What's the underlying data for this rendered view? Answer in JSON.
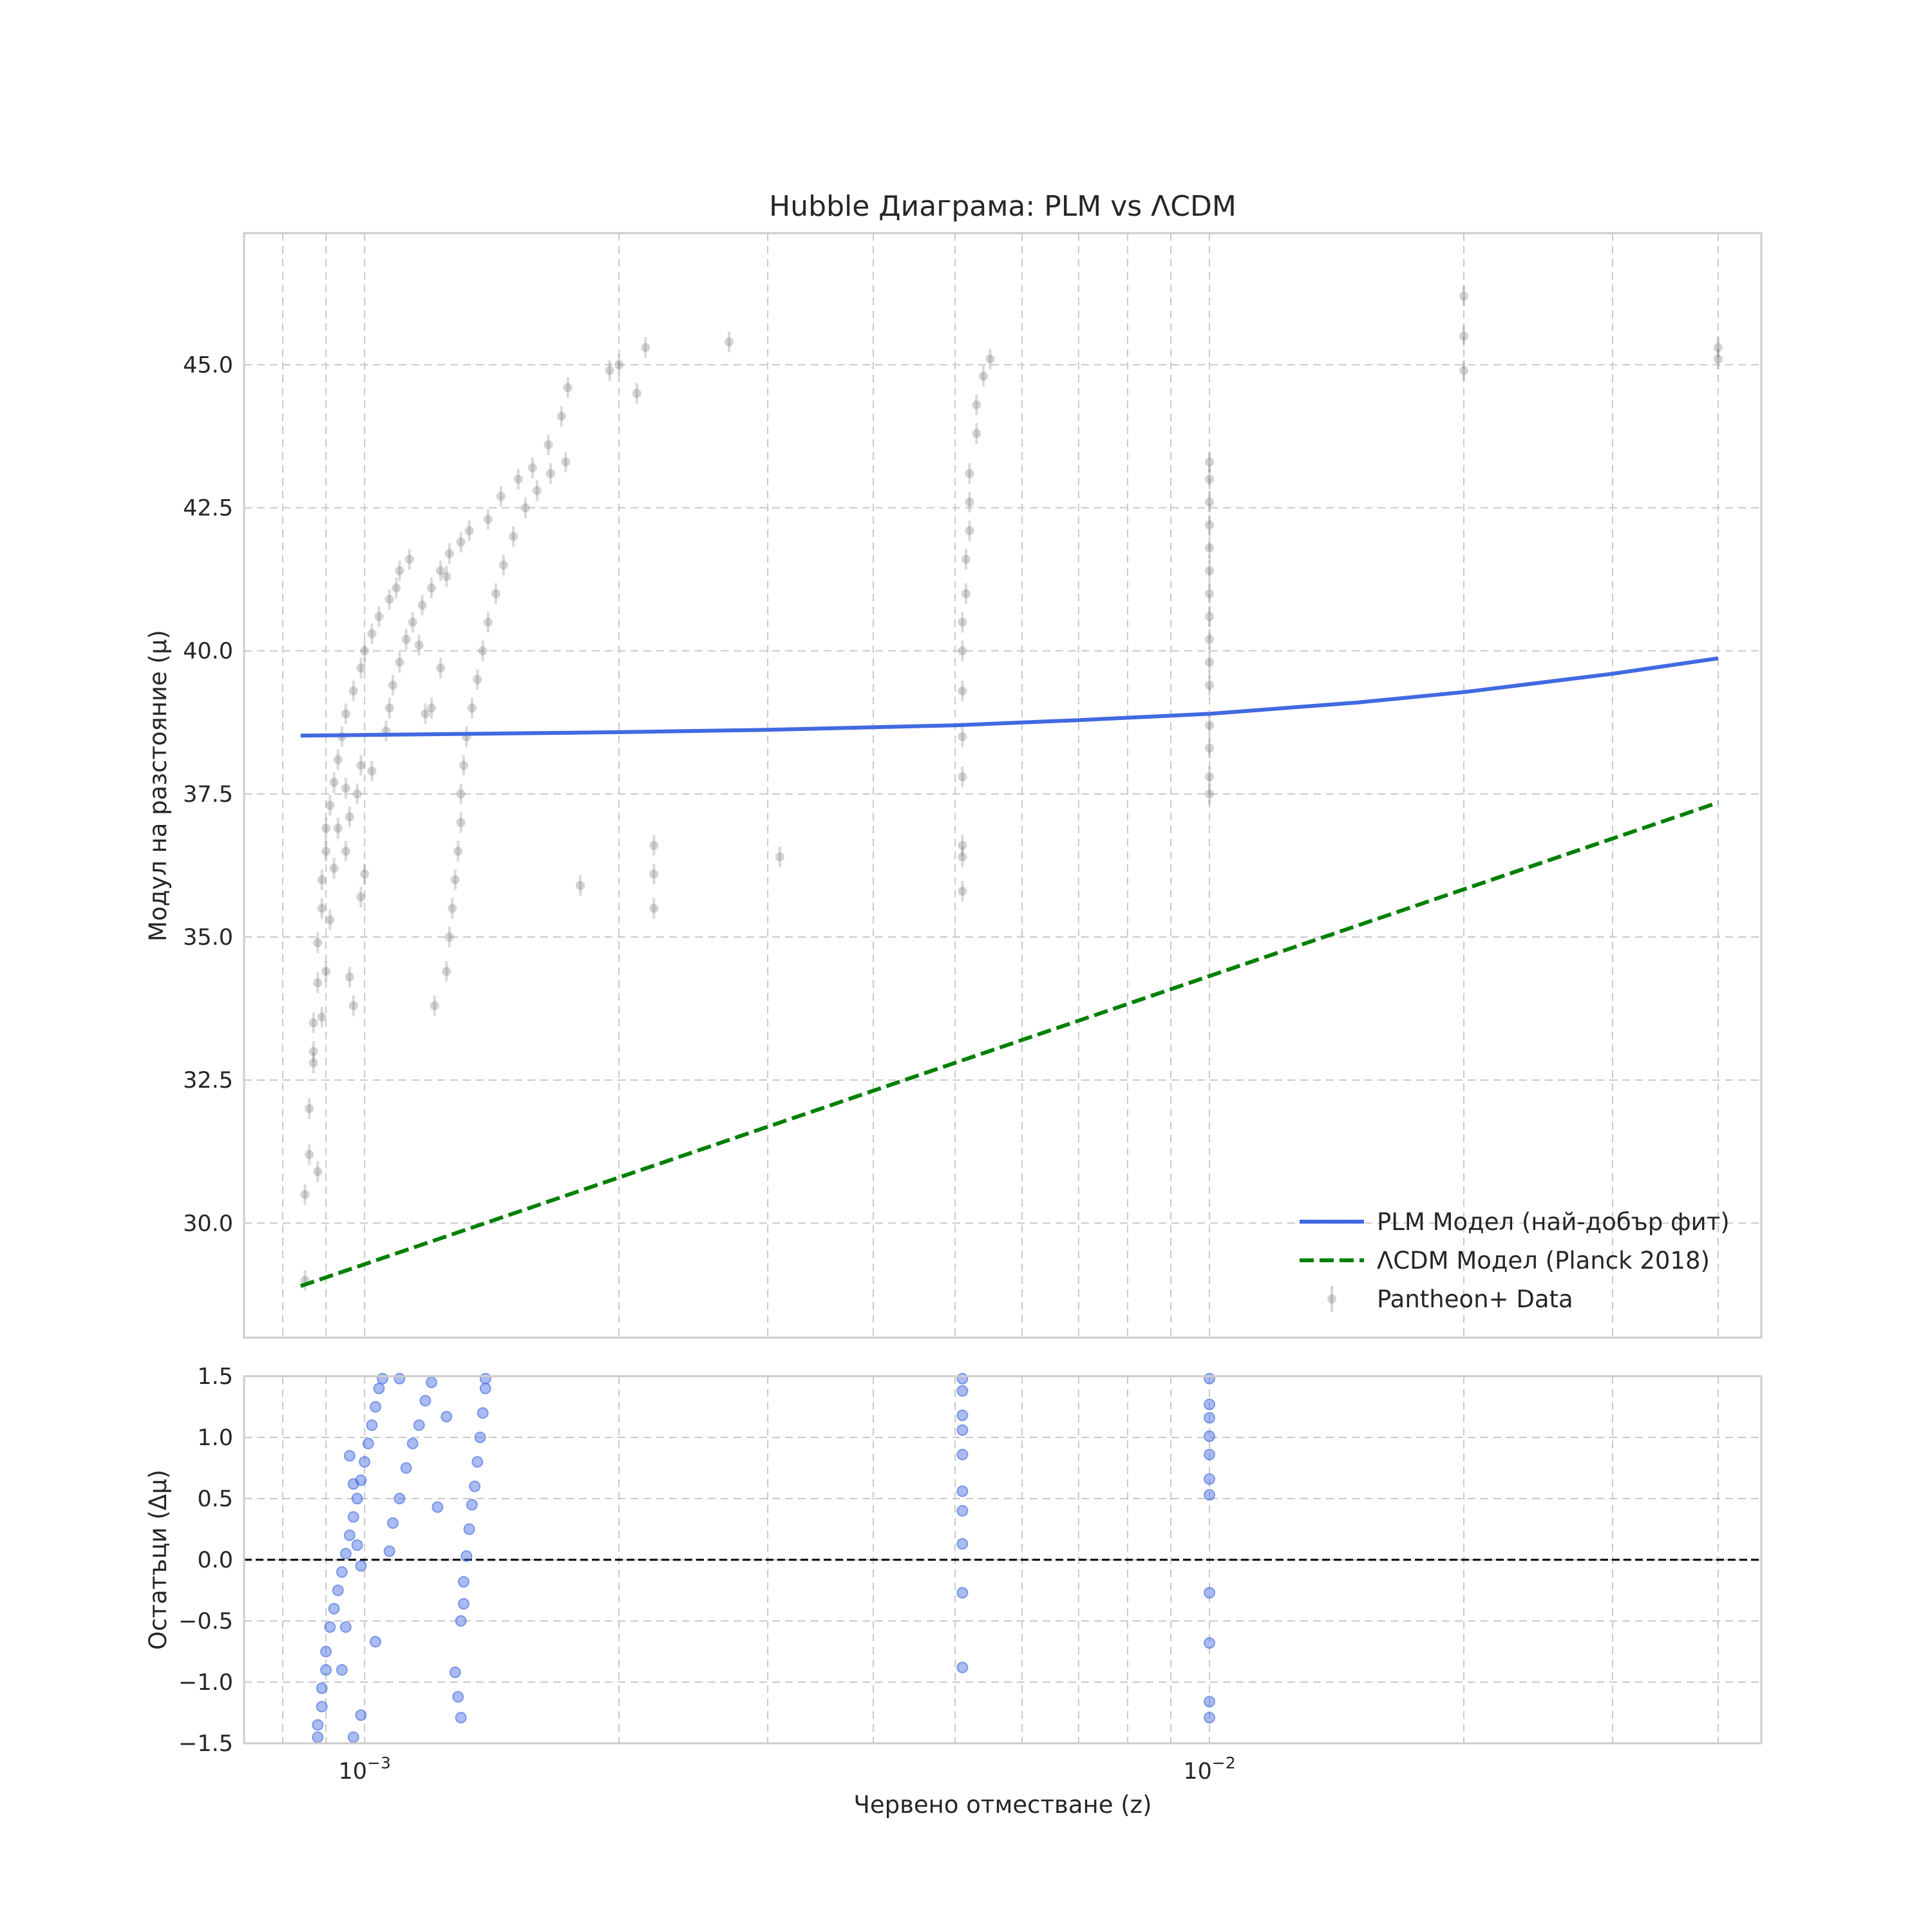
{
  "chart_data": [
    {
      "type": "scatter",
      "panel": "main",
      "title": "Hubble Диаграма: PLM vs ΛCDM",
      "xlabel": "",
      "ylabel": "Модул на разстояние (μ)",
      "xscale": "log",
      "xlim": [
        0.00072,
        0.045
      ],
      "ylim": [
        28.0,
        47.3
      ],
      "yticks": [
        30.0,
        32.5,
        35.0,
        37.5,
        40.0,
        42.5,
        45.0
      ],
      "ytick_labels": [
        "30.0",
        "32.5",
        "35.0",
        "37.5",
        "40.0",
        "42.5",
        "45.0"
      ],
      "grid": true,
      "legend": {
        "placement": "lower-right",
        "entries": [
          "PLM Модел (най-добър фит)",
          "ΛCDM Модел (Planck 2018)",
          "Pantheon+ Data"
        ]
      },
      "colors": {
        "plm": "#4169e1",
        "lcdm": "#008000",
        "data": "#808080"
      },
      "series": [
        {
          "name": "PLM Модел (най-добър фит)",
          "style": "line",
          "x": [
            0.00084,
            0.001,
            0.002,
            0.003,
            0.005,
            0.007,
            0.01,
            0.015,
            0.02,
            0.03,
            0.04
          ],
          "values": [
            38.52,
            38.53,
            38.58,
            38.62,
            38.7,
            38.79,
            38.9,
            39.1,
            39.28,
            39.6,
            39.87
          ]
        },
        {
          "name": "ΛCDM Модел (Planck 2018)",
          "style": "dashed-line",
          "x": [
            0.00084,
            0.04
          ],
          "values": [
            28.9,
            37.35
          ]
        },
        {
          "name": "Pantheon+ Data",
          "style": "errorbar-points",
          "points": [
            [
              0.00085,
              29.0
            ],
            [
              0.00085,
              30.5
            ],
            [
              0.00086,
              31.2
            ],
            [
              0.00086,
              32.0
            ],
            [
              0.00087,
              32.8
            ],
            [
              0.00087,
              33.5
            ],
            [
              0.00088,
              34.2
            ],
            [
              0.00088,
              34.9
            ],
            [
              0.00089,
              35.5
            ],
            [
              0.00089,
              36.0
            ],
            [
              0.0009,
              36.5
            ],
            [
              0.0009,
              36.9
            ],
            [
              0.00091,
              37.3
            ],
            [
              0.00092,
              37.7
            ],
            [
              0.00093,
              38.1
            ],
            [
              0.00094,
              38.5
            ],
            [
              0.00095,
              38.9
            ],
            [
              0.00097,
              39.3
            ],
            [
              0.00099,
              39.7
            ],
            [
              0.001,
              40.0
            ],
            [
              0.00102,
              40.3
            ],
            [
              0.00104,
              40.6
            ],
            [
              0.00107,
              40.9
            ],
            [
              0.00109,
              41.1
            ],
            [
              0.00087,
              33.0
            ],
            [
              0.00088,
              30.9
            ],
            [
              0.00089,
              33.6
            ],
            [
              0.0009,
              34.4
            ],
            [
              0.00091,
              35.3
            ],
            [
              0.00092,
              36.2
            ],
            [
              0.00093,
              36.9
            ],
            [
              0.00095,
              37.6
            ],
            [
              0.00096,
              34.3
            ],
            [
              0.00097,
              33.8
            ],
            [
              0.00099,
              35.7
            ],
            [
              0.001,
              36.1
            ],
            [
              0.00095,
              36.5
            ],
            [
              0.00096,
              37.1
            ],
            [
              0.00098,
              37.5
            ],
            [
              0.00099,
              38.0
            ],
            [
              0.00102,
              37.9
            ],
            [
              0.00106,
              38.6
            ],
            [
              0.00107,
              39.0
            ],
            [
              0.00108,
              39.4
            ],
            [
              0.0011,
              39.8
            ],
            [
              0.00112,
              40.2
            ],
            [
              0.00114,
              40.5
            ],
            [
              0.00117,
              40.8
            ],
            [
              0.0012,
              41.1
            ],
            [
              0.00123,
              41.4
            ],
            [
              0.00126,
              41.7
            ],
            [
              0.0013,
              41.9
            ],
            [
              0.0011,
              41.4
            ],
            [
              0.00113,
              41.6
            ],
            [
              0.00116,
              40.1
            ],
            [
              0.0012,
              39.0
            ],
            [
              0.00123,
              39.7
            ],
            [
              0.00125,
              41.3
            ],
            [
              0.00133,
              42.1
            ],
            [
              0.00118,
              38.9
            ],
            [
              0.00121,
              33.8
            ],
            [
              0.00125,
              34.4
            ],
            [
              0.00126,
              35.0
            ],
            [
              0.00127,
              35.5
            ],
            [
              0.00128,
              36.0
            ],
            [
              0.00129,
              36.5
            ],
            [
              0.0013,
              37.0
            ],
            [
              0.0013,
              37.5
            ],
            [
              0.00131,
              38.0
            ],
            [
              0.00132,
              38.5
            ],
            [
              0.00134,
              39.0
            ],
            [
              0.00136,
              39.5
            ],
            [
              0.00138,
              40.0
            ],
            [
              0.0014,
              40.5
            ],
            [
              0.00143,
              41.0
            ],
            [
              0.00146,
              41.5
            ],
            [
              0.0015,
              42.0
            ],
            [
              0.00155,
              42.5
            ],
            [
              0.0016,
              42.8
            ],
            [
              0.00166,
              43.1
            ],
            [
              0.00173,
              43.3
            ],
            [
              0.0014,
              42.3
            ],
            [
              0.00145,
              42.7
            ],
            [
              0.00152,
              43.0
            ],
            [
              0.00158,
              43.2
            ],
            [
              0.00165,
              43.6
            ],
            [
              0.00171,
              44.1
            ],
            [
              0.00174,
              44.6
            ],
            [
              0.0018,
              35.9
            ],
            [
              0.00195,
              44.9
            ],
            [
              0.002,
              45.0
            ],
            [
              0.0021,
              44.5
            ],
            [
              0.00215,
              45.3
            ],
            [
              0.0022,
              36.6
            ],
            [
              0.0022,
              36.1
            ],
            [
              0.0022,
              35.5
            ],
            [
              0.0027,
              45.4
            ],
            [
              0.0031,
              36.4
            ],
            [
              0.0051,
              35.8
            ],
            [
              0.0051,
              36.4
            ],
            [
              0.0051,
              36.6
            ],
            [
              0.0051,
              37.8
            ],
            [
              0.0051,
              38.5
            ],
            [
              0.0051,
              39.3
            ],
            [
              0.0051,
              40.0
            ],
            [
              0.0051,
              40.5
            ],
            [
              0.00515,
              41.0
            ],
            [
              0.00515,
              41.6
            ],
            [
              0.0052,
              42.1
            ],
            [
              0.0052,
              42.6
            ],
            [
              0.0052,
              43.1
            ],
            [
              0.0053,
              43.8
            ],
            [
              0.0053,
              44.3
            ],
            [
              0.0054,
              44.8
            ],
            [
              0.0055,
              45.1
            ],
            [
              0.01,
              37.5
            ],
            [
              0.01,
              37.8
            ],
            [
              0.01,
              38.3
            ],
            [
              0.01,
              38.7
            ],
            [
              0.01,
              39.4
            ],
            [
              0.01,
              39.8
            ],
            [
              0.01,
              40.2
            ],
            [
              0.01,
              40.6
            ],
            [
              0.01,
              41.0
            ],
            [
              0.01,
              41.4
            ],
            [
              0.01,
              41.8
            ],
            [
              0.01,
              42.2
            ],
            [
              0.01,
              42.6
            ],
            [
              0.01,
              43.0
            ],
            [
              0.01,
              43.3
            ],
            [
              0.02,
              44.9
            ],
            [
              0.02,
              45.5
            ],
            [
              0.02,
              46.2
            ],
            [
              0.04,
              45.1
            ],
            [
              0.04,
              45.3
            ]
          ]
        }
      ]
    },
    {
      "type": "scatter",
      "panel": "residuals",
      "title": "",
      "xlabel": "Червено отместване (z)",
      "ylabel": "Остатъци (Δμ)",
      "xscale": "log",
      "xlim": [
        0.00072,
        0.045
      ],
      "ylim": [
        -1.5,
        1.5
      ],
      "xticks": [
        0.001,
        0.01
      ],
      "xtick_labels": [
        "10",
        "10"
      ],
      "xtick_exponents": [
        "−3",
        "−2"
      ],
      "yticks": [
        -1.5,
        -1.0,
        -0.5,
        0.0,
        0.5,
        1.0,
        1.5
      ],
      "ytick_labels": [
        "−1.5",
        "−1.0",
        "−0.5",
        "0.0",
        "0.5",
        "1.0",
        "1.5"
      ],
      "grid": true,
      "zero_line": 0.0,
      "colors": {
        "points": "#4169e1",
        "zero_line": "#000000"
      },
      "series": [
        {
          "name": "",
          "style": "points",
          "points": [
            [
              0.00088,
              -1.45
            ],
            [
              0.00088,
              -1.35
            ],
            [
              0.00089,
              -1.2
            ],
            [
              0.00089,
              -1.05
            ],
            [
              0.0009,
              -0.9
            ],
            [
              0.0009,
              -0.75
            ],
            [
              0.00091,
              -0.55
            ],
            [
              0.00092,
              -0.4
            ],
            [
              0.00093,
              -0.25
            ],
            [
              0.00094,
              -0.1
            ],
            [
              0.00095,
              0.05
            ],
            [
              0.00096,
              0.2
            ],
            [
              0.00097,
              0.35
            ],
            [
              0.00098,
              0.5
            ],
            [
              0.00099,
              0.65
            ],
            [
              0.001,
              0.8
            ],
            [
              0.00101,
              0.95
            ],
            [
              0.00102,
              1.1
            ],
            [
              0.00103,
              1.25
            ],
            [
              0.00104,
              1.4
            ],
            [
              0.00105,
              1.48
            ],
            [
              0.00094,
              -0.9
            ],
            [
              0.00095,
              -0.55
            ],
            [
              0.00097,
              -1.45
            ],
            [
              0.00099,
              -1.27
            ],
            [
              0.00103,
              -0.67
            ],
            [
              0.00096,
              0.85
            ],
            [
              0.00097,
              0.62
            ],
            [
              0.00098,
              0.12
            ],
            [
              0.00099,
              -0.05
            ],
            [
              0.00107,
              0.07
            ],
            [
              0.00108,
              0.3
            ],
            [
              0.0011,
              0.5
            ],
            [
              0.00112,
              0.75
            ],
            [
              0.00114,
              0.95
            ],
            [
              0.00116,
              1.1
            ],
            [
              0.00118,
              1.3
            ],
            [
              0.0012,
              1.45
            ],
            [
              0.0011,
              1.48
            ],
            [
              0.00122,
              0.43
            ],
            [
              0.00125,
              1.17
            ],
            [
              0.00128,
              -0.92
            ],
            [
              0.00129,
              -1.12
            ],
            [
              0.0013,
              -1.29
            ],
            [
              0.0013,
              -0.5
            ],
            [
              0.00131,
              -0.36
            ],
            [
              0.00131,
              -0.18
            ],
            [
              0.00132,
              0.03
            ],
            [
              0.00133,
              0.25
            ],
            [
              0.00134,
              0.45
            ],
            [
              0.00135,
              0.6
            ],
            [
              0.00136,
              0.8
            ],
            [
              0.00137,
              1.0
            ],
            [
              0.00138,
              1.2
            ],
            [
              0.00139,
              1.4
            ],
            [
              0.00139,
              1.48
            ],
            [
              0.0051,
              -0.88
            ],
            [
              0.0051,
              -0.27
            ],
            [
              0.0051,
              0.13
            ],
            [
              0.0051,
              0.4
            ],
            [
              0.0051,
              0.56
            ],
            [
              0.0051,
              0.86
            ],
            [
              0.0051,
              1.06
            ],
            [
              0.0051,
              1.18
            ],
            [
              0.0051,
              1.38
            ],
            [
              0.0051,
              1.48
            ],
            [
              0.01,
              -1.29
            ],
            [
              0.01,
              -1.16
            ],
            [
              0.01,
              -0.68
            ],
            [
              0.01,
              -0.27
            ],
            [
              0.01,
              0.53
            ],
            [
              0.01,
              0.66
            ],
            [
              0.01,
              0.86
            ],
            [
              0.01,
              1.01
            ],
            [
              0.01,
              1.16
            ],
            [
              0.01,
              1.27
            ],
            [
              0.01,
              1.48
            ]
          ]
        }
      ]
    }
  ]
}
